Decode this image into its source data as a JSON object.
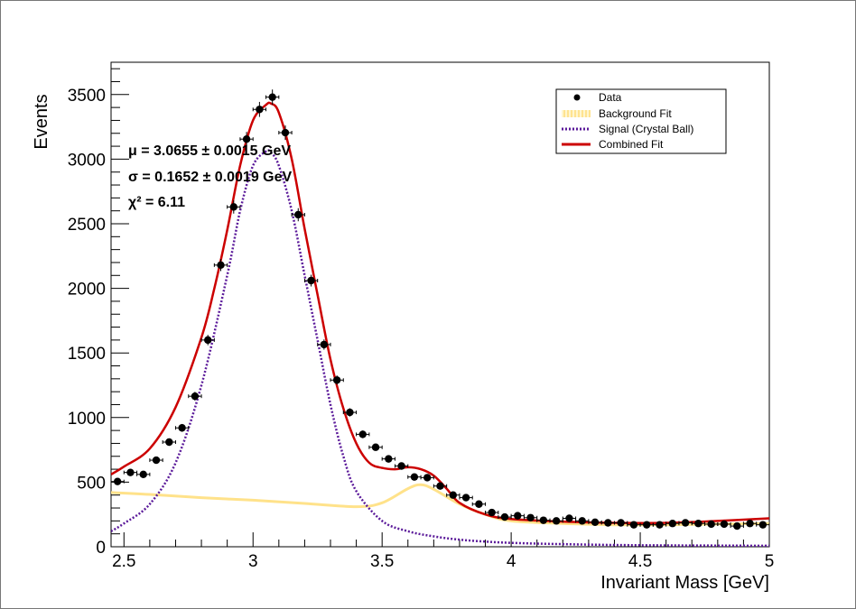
{
  "chart_data": {
    "type": "scatter",
    "title": "",
    "xlabel": "Invariant Mass [GeV]",
    "ylabel": "Events",
    "xlim": [
      2.45,
      5.0
    ],
    "ylim": [
      0,
      3750
    ],
    "x_ticks": [
      2.5,
      3,
      3.5,
      4,
      4.5,
      5
    ],
    "x_tick_labels": [
      "2.5",
      "3",
      "3.5",
      "4",
      "4.5",
      "5"
    ],
    "y_ticks": [
      0,
      500,
      1000,
      1500,
      2000,
      2500,
      3000,
      3500
    ],
    "y_tick_labels": [
      "0",
      "500",
      "1000",
      "1500",
      "2000",
      "2500",
      "3000",
      "3500"
    ],
    "grid": false,
    "legend": {
      "position": "top-right",
      "entries": [
        {
          "label": "Data",
          "color": "#000000",
          "style": "marker"
        },
        {
          "label": "Background Fit",
          "color": "#ffe28a",
          "style": "hatched"
        },
        {
          "label": "Signal (Crystal Ball)",
          "color": "#5b1a9a",
          "style": "dotted"
        },
        {
          "label": "Combined Fit",
          "color": "#cc0000",
          "style": "solid"
        }
      ]
    },
    "annotations": [
      {
        "label": "μ = 3.0655 ± 0.0015 GeV"
      },
      {
        "label": "σ = 0.1652 ± 0.0019 GeV"
      },
      {
        "label": "χ² = 6.11"
      }
    ],
    "series": [
      {
        "name": "Data",
        "type": "scatter",
        "color": "#000000",
        "x_error": 0.025,
        "x": [
          2.475,
          2.525,
          2.575,
          2.625,
          2.675,
          2.725,
          2.775,
          2.825,
          2.875,
          2.925,
          2.975,
          3.025,
          3.075,
          3.125,
          3.175,
          3.225,
          3.275,
          3.325,
          3.375,
          3.425,
          3.475,
          3.525,
          3.575,
          3.625,
          3.675,
          3.725,
          3.775,
          3.825,
          3.875,
          3.925,
          3.975,
          4.025,
          4.075,
          4.125,
          4.175,
          4.225,
          4.275,
          4.325,
          4.375,
          4.425,
          4.475,
          4.525,
          4.575,
          4.625,
          4.675,
          4.725,
          4.775,
          4.825,
          4.875,
          4.925,
          4.975
        ],
        "y": [
          505,
          575,
          560,
          670,
          810,
          920,
          1165,
          1600,
          2180,
          2630,
          3155,
          3385,
          3480,
          3205,
          2570,
          2060,
          1565,
          1290,
          1040,
          870,
          770,
          680,
          625,
          540,
          535,
          470,
          400,
          380,
          330,
          265,
          230,
          240,
          225,
          205,
          200,
          220,
          200,
          190,
          185,
          185,
          170,
          170,
          170,
          180,
          185,
          180,
          175,
          175,
          160,
          180,
          170
        ]
      },
      {
        "name": "Background Fit",
        "type": "line",
        "color": "#ffe28a",
        "x": [
          2.45,
          2.6,
          2.8,
          3.0,
          3.2,
          3.4,
          3.5,
          3.6,
          3.65,
          3.7,
          3.8,
          3.9,
          4.0,
          4.2,
          4.4,
          4.6,
          4.8,
          5.0
        ],
        "y": [
          420,
          405,
          380,
          360,
          335,
          310,
          340,
          450,
          480,
          445,
          330,
          250,
          200,
          180,
          170,
          170,
          175,
          180
        ]
      },
      {
        "name": "Signal (Crystal Ball)",
        "type": "line",
        "color": "#5b1a9a",
        "x": [
          2.45,
          2.5,
          2.6,
          2.7,
          2.8,
          2.9,
          2.95,
          3.0,
          3.05,
          3.07,
          3.1,
          3.15,
          3.2,
          3.25,
          3.3,
          3.35,
          3.4,
          3.5,
          3.6,
          3.7,
          3.8,
          3.9,
          4.0,
          4.2,
          4.5,
          5.0
        ],
        "y": [
          120,
          180,
          330,
          650,
          1250,
          2100,
          2600,
          2950,
          3060,
          3050,
          2950,
          2600,
          2100,
          1600,
          1100,
          700,
          430,
          200,
          120,
          80,
          55,
          40,
          30,
          20,
          12,
          8
        ]
      },
      {
        "name": "Combined Fit",
        "type": "line",
        "color": "#cc0000",
        "x": [
          2.45,
          2.5,
          2.6,
          2.7,
          2.8,
          2.85,
          2.9,
          2.95,
          3.0,
          3.05,
          3.07,
          3.1,
          3.15,
          3.2,
          3.25,
          3.3,
          3.35,
          3.4,
          3.45,
          3.5,
          3.55,
          3.6,
          3.65,
          3.7,
          3.75,
          3.8,
          3.9,
          4.0,
          4.2,
          4.4,
          4.6,
          4.8,
          5.0
        ],
        "y": [
          560,
          620,
          760,
          1080,
          1620,
          2000,
          2450,
          2950,
          3300,
          3420,
          3430,
          3360,
          3000,
          2460,
          1950,
          1450,
          1070,
          800,
          650,
          610,
          600,
          615,
          600,
          550,
          450,
          340,
          250,
          215,
          195,
          185,
          185,
          200,
          220
        ]
      }
    ]
  }
}
